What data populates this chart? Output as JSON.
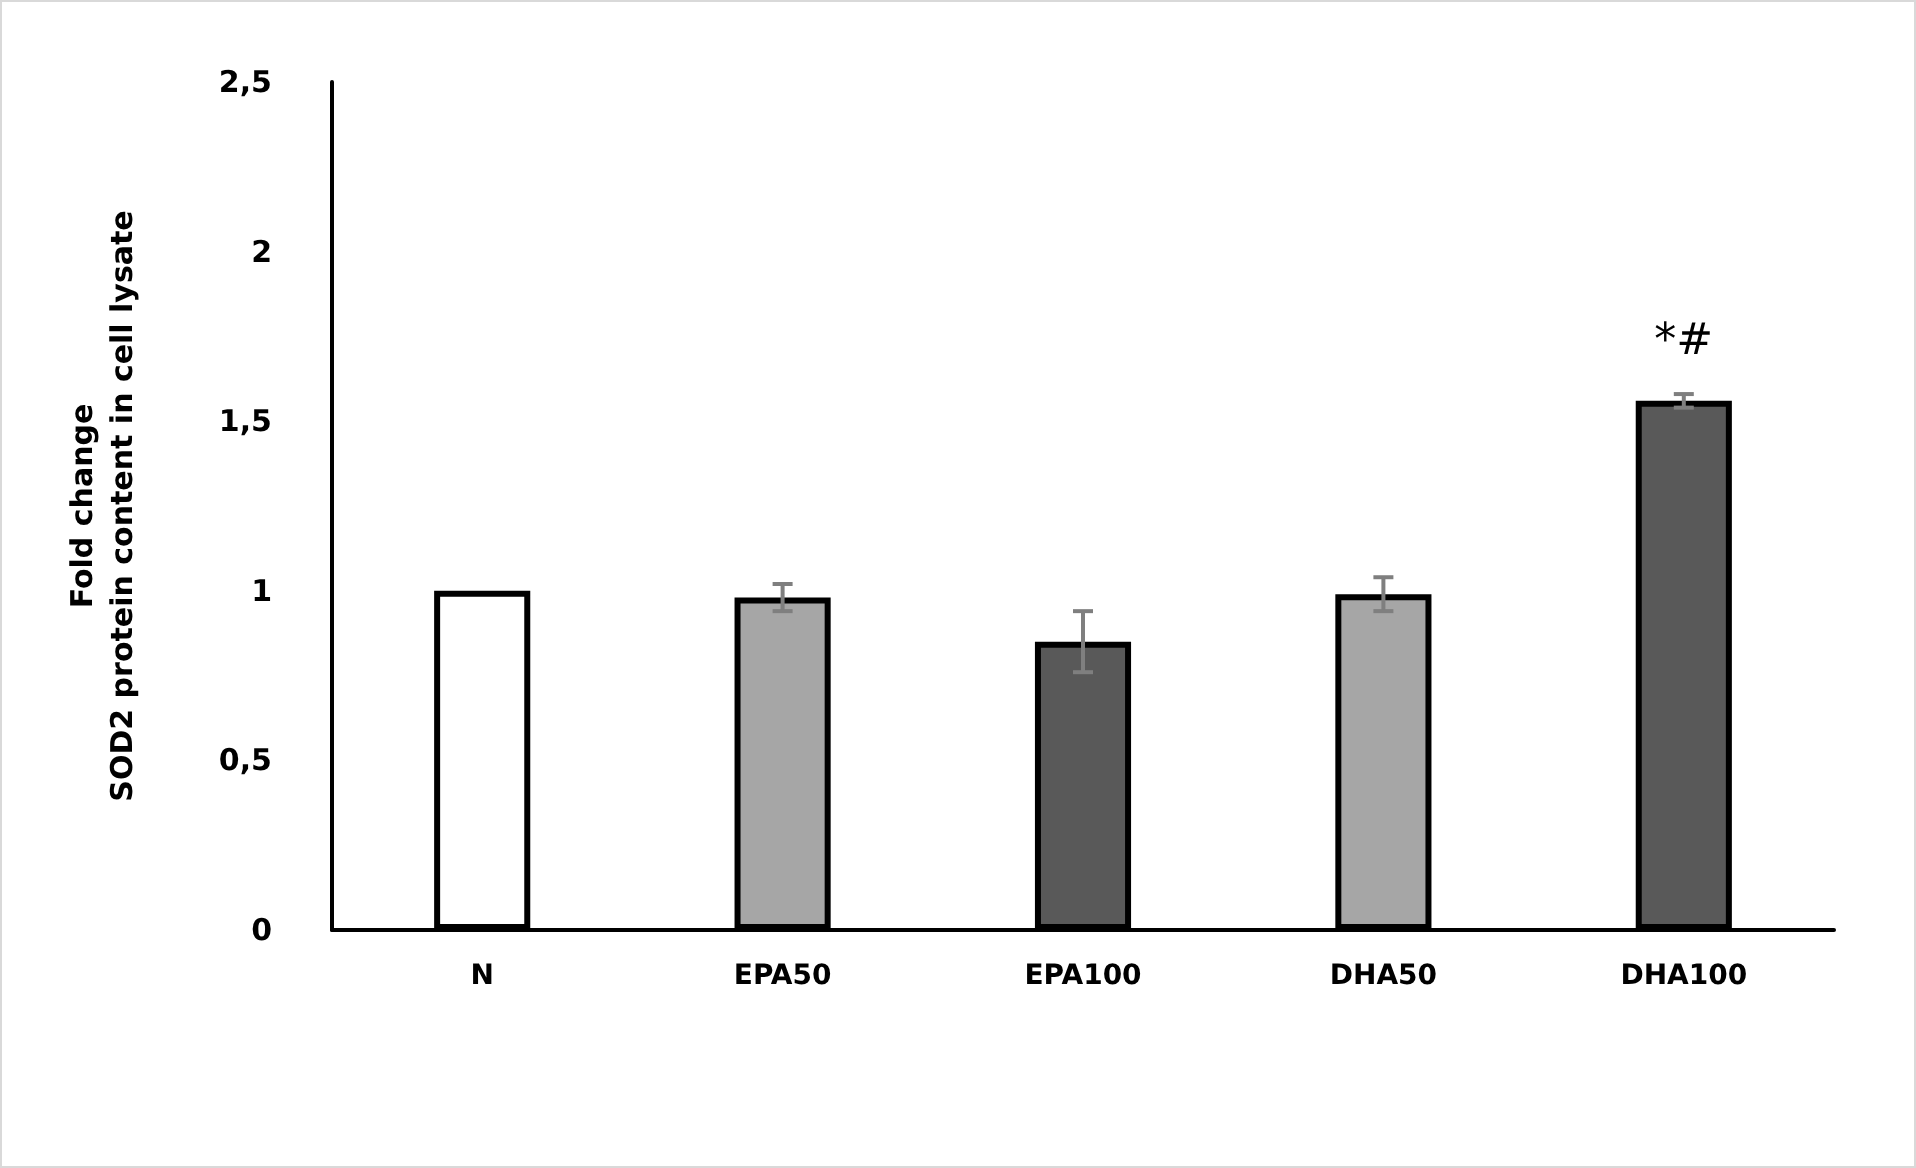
{
  "chart_data": {
    "type": "bar",
    "ylabel": "Fold change\nSOD2 protein content in cell lysate",
    "categories": [
      "N",
      "EPA50",
      "EPA100",
      "DHA50",
      "DHA100"
    ],
    "values": [
      1,
      0.98,
      0.85,
      0.99,
      1.56
    ],
    "errors": [
      null,
      0.04,
      0.09,
      0.05,
      0.02
    ],
    "colors": [
      "#ffffff",
      "#a6a6a6",
      "#595959",
      "#a6a6a6",
      "#595959"
    ],
    "ylim": [
      0,
      2.5
    ],
    "yticks": [
      0,
      {
        "value": 0.5,
        "label": "0,5"
      },
      1,
      {
        "value": 1.5,
        "label": "1,5"
      },
      2,
      {
        "value": 2.5,
        "label": "2,5"
      }
    ],
    "annotations": [
      {
        "text": "*#",
        "x": "DHA100",
        "y": 1.56
      }
    ],
    "grid": false
  }
}
